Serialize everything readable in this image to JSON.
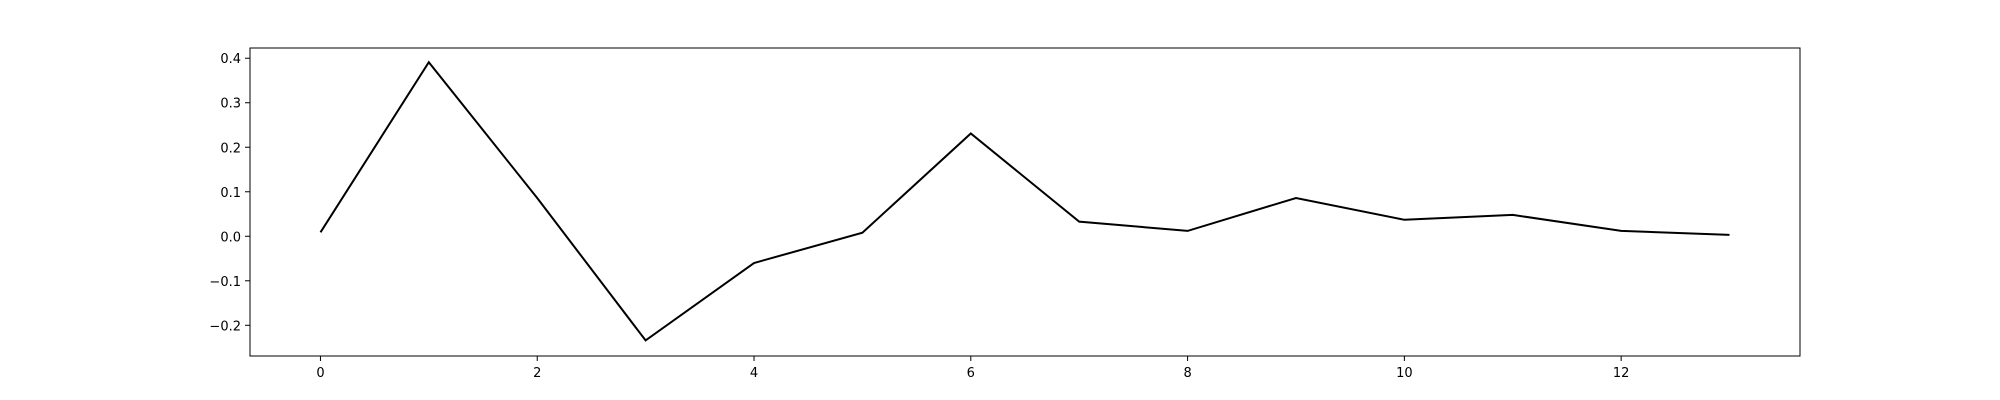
{
  "chart_data": {
    "type": "line",
    "title": "",
    "xlabel": "",
    "ylabel": "",
    "xlim": [
      -0.65,
      13.65
    ],
    "ylim": [
      -0.269,
      0.423
    ],
    "grid": false,
    "x_ticks": [
      0,
      2,
      4,
      6,
      8,
      10,
      12
    ],
    "y_ticks": [
      -0.2,
      -0.1,
      0.0,
      0.1,
      0.2,
      0.3,
      0.4
    ],
    "y_tick_labels": [
      "−0.2",
      "−0.1",
      "0.0",
      "0.1",
      "0.2",
      "0.3",
      "0.4"
    ],
    "x_tick_labels": [
      "0",
      "2",
      "4",
      "6",
      "8",
      "10",
      "12"
    ],
    "series": [
      {
        "color": "#000000",
        "x": [
          0,
          1,
          2,
          3,
          4,
          5,
          6,
          7,
          8,
          9,
          10,
          11,
          12,
          13
        ],
        "y": [
          0.009,
          0.391,
          0.086,
          -0.234,
          -0.06,
          0.008,
          0.231,
          0.033,
          0.012,
          0.086,
          0.037,
          0.048,
          0.012,
          0.003
        ]
      }
    ]
  }
}
